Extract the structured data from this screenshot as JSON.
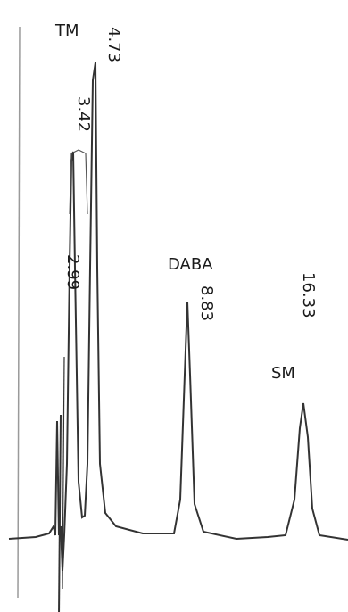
{
  "chart_data": {
    "type": "line",
    "title": "",
    "xlabel": "",
    "ylabel": "",
    "grid": false,
    "baseline_style": "chromatogram trace drawn vertically, time axis runs left to right, injection dip near start",
    "peaks": [
      {
        "retention_time": "2.99",
        "name": "",
        "relative_height": 0.7
      },
      {
        "retention_time": "3.42",
        "name": "",
        "relative_height": 0.78
      },
      {
        "retention_time": "4.73",
        "name": "TM",
        "relative_height": 1.0
      },
      {
        "retention_time": "8.83",
        "name": "DABA",
        "relative_height": 0.45
      },
      {
        "retention_time": "16.33",
        "name": "SM",
        "relative_height": 0.27
      }
    ],
    "line_color": "#333333"
  }
}
